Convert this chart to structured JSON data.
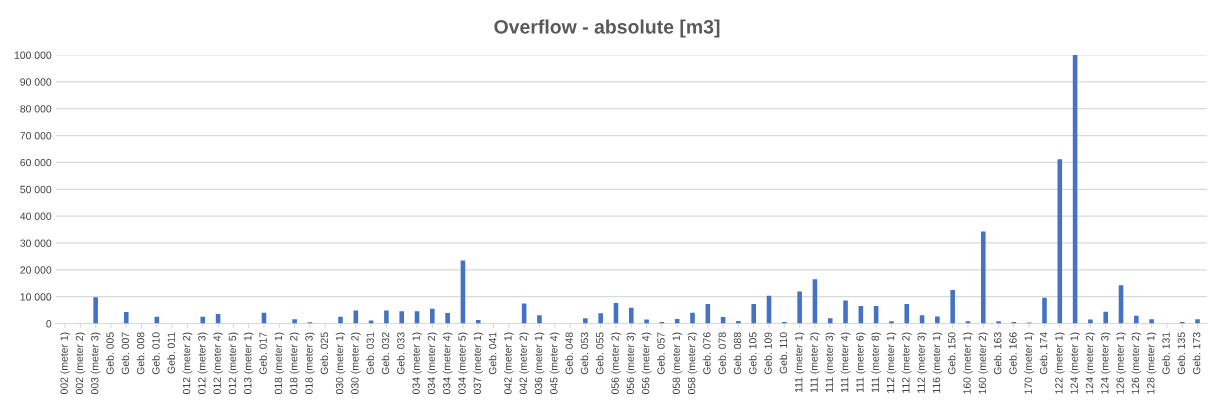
{
  "chart_data": {
    "type": "bar",
    "title": "Overflow - absolute [m3]",
    "categories": [
      "002 (meter 1)",
      "002 (meter 2)",
      "003 (meter 3)",
      "Geb. 005",
      "Geb. 007",
      "Geb. 008",
      "Geb. 010",
      "Geb. 011",
      "012 (meter 2)",
      "012 (meter 3)",
      "012 (meter 4)",
      "012 (meter 5)",
      "013 (meter 1)",
      "Geb. 017",
      "018 (meter 1)",
      "018 (meter 2)",
      "018 (meter 3)",
      "Geb. 025",
      "030 (meter 1)",
      "030 (meter 2)",
      "Geb. 031",
      "Geb. 032",
      "Geb. 033",
      "034 (meter 1)",
      "034 (meter 2)",
      "034 (meter 4)",
      "034 (meter 5)",
      "037 (meter 1)",
      "Geb. 041",
      "042 (meter 1)",
      "042 (meter 2)",
      "036 (meter 1)",
      "045 (meter 4)",
      "Geb. 048",
      "Geb. 053",
      "Geb. 055",
      "056 (meter 2)",
      "056 (meter 3)",
      "056 (meter 4)",
      "Geb. 057",
      "058 (meter 1)",
      "058 (meter 2)",
      "Geb. 076",
      "Geb. 078",
      "Geb. 088",
      "Geb. 105",
      "Geb. 109",
      "Geb. 110",
      "111 (meter 1)",
      "111 (meter 2)",
      "111 (meter 3)",
      "111 (meter 4)",
      "111 (meter 6)",
      "111 (meter 8)",
      "112 (meter 1)",
      "112 (meter 2)",
      "112 (meter 3)",
      "116 (meter 1)",
      "Geb. 150",
      "160 (meter 1)",
      "160 (meter 2)",
      "Geb. 163",
      "Geb. 166",
      "170 (meter 1)",
      "Geb. 174",
      "122 (meter 1)",
      "124 (meter 1)",
      "124 (meter 2)",
      "124 (meter 3)",
      "126 (meter 1)",
      "126 (meter 2)",
      "128 (meter 1)",
      "Geb. 131",
      "Geb. 135",
      "Geb. 173"
    ],
    "values": [
      0,
      0,
      9800,
      0,
      4300,
      0,
      2500,
      0,
      0,
      2500,
      3600,
      0,
      0,
      4000,
      0,
      1600,
      500,
      0,
      2500,
      4900,
      1100,
      4900,
      4600,
      4600,
      5500,
      3900,
      23500,
      1300,
      0,
      0,
      7500,
      3100,
      0,
      0,
      2000,
      3800,
      7700,
      5900,
      1500,
      600,
      1700,
      4000,
      7300,
      2400,
      1000,
      7300,
      10400,
      600,
      11900,
      16500,
      2000,
      8600,
      6500,
      6500,
      900,
      7300,
      3100,
      2600,
      12500,
      900,
      34300,
      900,
      600,
      400,
      9600,
      61200,
      100000,
      1500,
      4400,
      14300,
      2900,
      1600,
      0,
      600,
      1600
    ],
    "color": "#4472c4",
    "ylim": [
      0,
      100000
    ],
    "yticks": [
      0,
      {
        "value": 10000,
        "label": "10 000"
      },
      {
        "value": 20000,
        "label": "20 000"
      },
      {
        "value": 30000,
        "label": "30 000"
      },
      {
        "value": 40000,
        "label": "40 000"
      },
      {
        "value": 50000,
        "label": "50 000"
      },
      {
        "value": 60000,
        "label": "60 000"
      },
      {
        "value": 70000,
        "label": "70 000"
      },
      {
        "value": 80000,
        "label": "80 000"
      },
      {
        "value": 90000,
        "label": "90 000"
      },
      {
        "value": 100000,
        "label": "100 000"
      }
    ],
    "grid": "y"
  }
}
